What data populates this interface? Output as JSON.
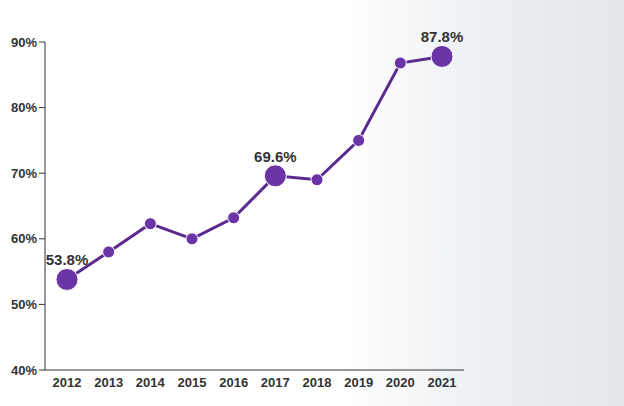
{
  "chart_data": {
    "type": "line",
    "categories": [
      "2012",
      "2013",
      "2014",
      "2015",
      "2016",
      "2017",
      "2018",
      "2019",
      "2020",
      "2021"
    ],
    "values": [
      53.8,
      58,
      62.3,
      60,
      63.2,
      69.6,
      69,
      75,
      86.8,
      87.8
    ],
    "value_labels": [
      "53.8%",
      null,
      null,
      null,
      null,
      "69.6%",
      null,
      null,
      null,
      "87.8%"
    ],
    "data_labels": true,
    "color": "#5b2a91",
    "marker": "circle",
    "ylim": [
      40,
      90
    ],
    "yticks": [
      {
        "value": 40,
        "label": "40%"
      },
      {
        "value": 50,
        "label": "50%"
      },
      {
        "value": 60,
        "label": "60%"
      },
      {
        "value": 70,
        "label": "70%"
      },
      {
        "value": 80,
        "label": "80%"
      },
      {
        "value": 90,
        "label": "90%"
      }
    ],
    "grid": false
  }
}
